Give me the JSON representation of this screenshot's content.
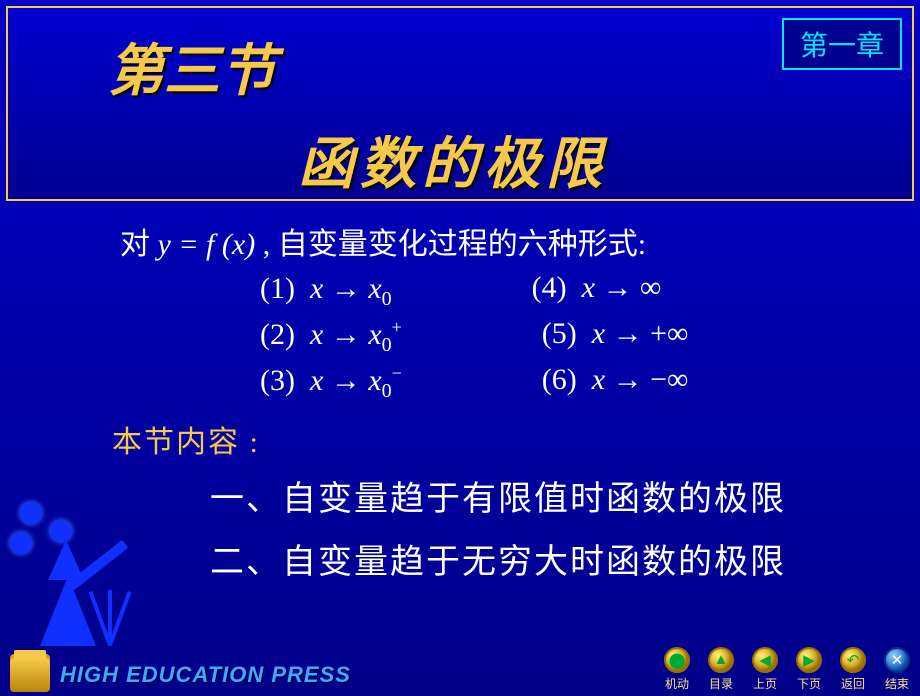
{
  "chapter_badge": "第一章",
  "section_number": "第三节",
  "section_title": "函数的极限",
  "intro_prefix": "对",
  "intro_formula_html": "y = f (x)",
  "intro_suffix": " , 自变量变化过程的六种形式:",
  "forms": {
    "row1": {
      "left": {
        "num": "(1)",
        "var": "x",
        "arrow": "→",
        "target": "x",
        "sub": "0",
        "sup": ""
      },
      "right": {
        "num": "(4)",
        "var": "x",
        "arrow": "→",
        "target": "∞",
        "sub": "",
        "sup": ""
      }
    },
    "row2": {
      "left": {
        "num": "(2)",
        "var": "x",
        "arrow": "→",
        "target": "x",
        "sub": "0",
        "sup": "+"
      },
      "right": {
        "num": "(5)",
        "var": "x",
        "arrow": "→",
        "target": "+∞",
        "sub": "",
        "sup": ""
      }
    },
    "row3": {
      "left": {
        "num": "(3)",
        "var": "x",
        "arrow": "→",
        "target": "x",
        "sub": "0",
        "sup": "−"
      },
      "right": {
        "num": "(6)",
        "var": "x",
        "arrow": "→",
        "target": "−∞",
        "sub": "",
        "sup": ""
      }
    }
  },
  "section_label": "本节内容 :",
  "topics": [
    "一、自变量趋于有限值时函数的极限",
    "二、自变量趋于无穷大时函数的极限"
  ],
  "press_text": "HIGH EDUCATION PRESS",
  "nav": [
    {
      "label": "机动",
      "glyph": "⬤",
      "blue": false
    },
    {
      "label": "目录",
      "glyph": "▲",
      "blue": false
    },
    {
      "label": "上页",
      "glyph": "◀",
      "blue": false
    },
    {
      "label": "下页",
      "glyph": "▶",
      "blue": false
    },
    {
      "label": "返回",
      "glyph": "↶",
      "blue": false
    },
    {
      "label": "结束",
      "glyph": "✕",
      "blue": true
    }
  ],
  "colors": {
    "accent_yellow": "#f7c94a",
    "cyan": "#00e6ff",
    "press_blue": "#3fa8ff",
    "bg_top": "#0000c8",
    "bg_bottom": "#000088"
  }
}
